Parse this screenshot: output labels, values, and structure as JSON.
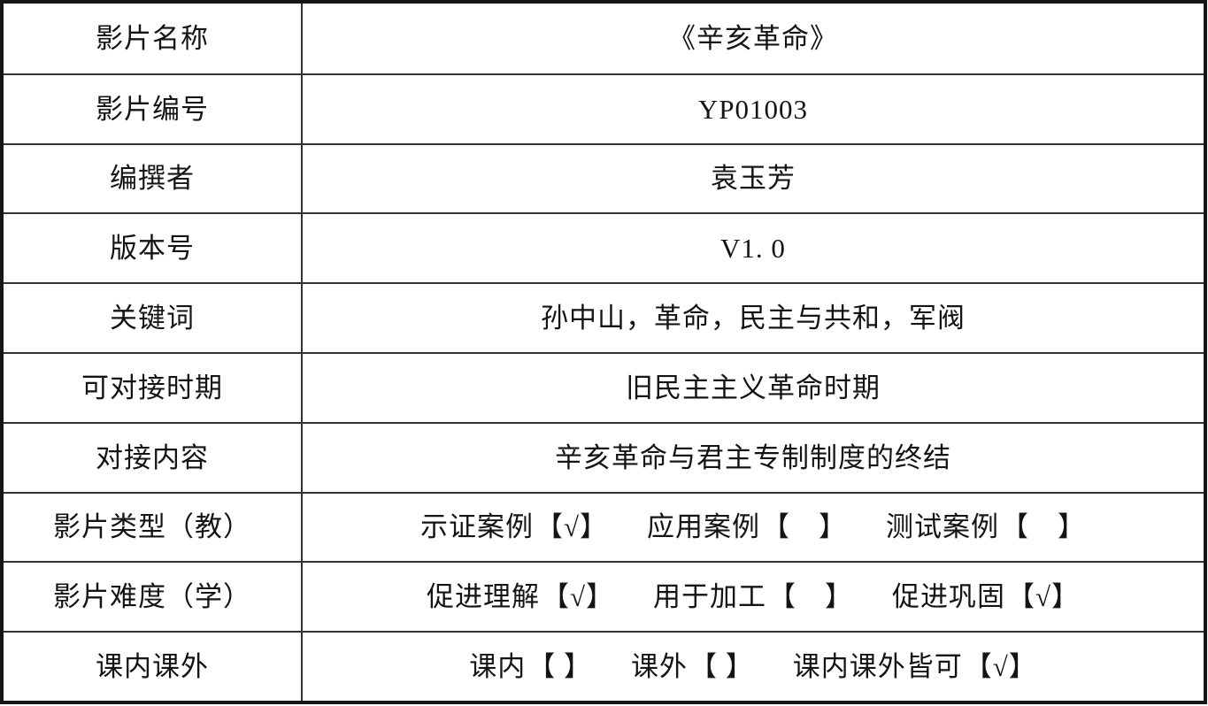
{
  "table": {
    "rows": [
      {
        "label": "影片名称",
        "value": "《辛亥革命》"
      },
      {
        "label": "影片编号",
        "value": "YP01003"
      },
      {
        "label": "编撰者",
        "value": "袁玉芳"
      },
      {
        "label": "版本号",
        "value": "V1. 0"
      },
      {
        "label": "关键词",
        "value": "孙中山，革命，民主与共和，军阀"
      },
      {
        "label": "可对接时期",
        "value": "旧民主主义革命时期"
      },
      {
        "label": "对接内容",
        "value": "辛亥革命与君主专制制度的终结"
      },
      {
        "label": "影片类型（教）",
        "options": [
          {
            "text": "示证案例",
            "checked": true,
            "mark": "【√】"
          },
          {
            "text": "应用案例",
            "checked": false,
            "mark": "【　】"
          },
          {
            "text": "测试案例",
            "checked": false,
            "mark": "【　】"
          }
        ]
      },
      {
        "label": "影片难度（学）",
        "options": [
          {
            "text": "促进理解",
            "checked": true,
            "mark": "【√】"
          },
          {
            "text": "用于加工",
            "checked": false,
            "mark": "【　】"
          },
          {
            "text": "促进巩固",
            "checked": true,
            "mark": "【√】"
          }
        ]
      },
      {
        "label": "课内课外",
        "options": [
          {
            "text": "课内",
            "checked": false,
            "mark": "【 】"
          },
          {
            "text": "课外",
            "checked": false,
            "mark": "【 】"
          },
          {
            "text": "课内课外皆可",
            "checked": true,
            "mark": "【√】"
          }
        ]
      }
    ]
  }
}
